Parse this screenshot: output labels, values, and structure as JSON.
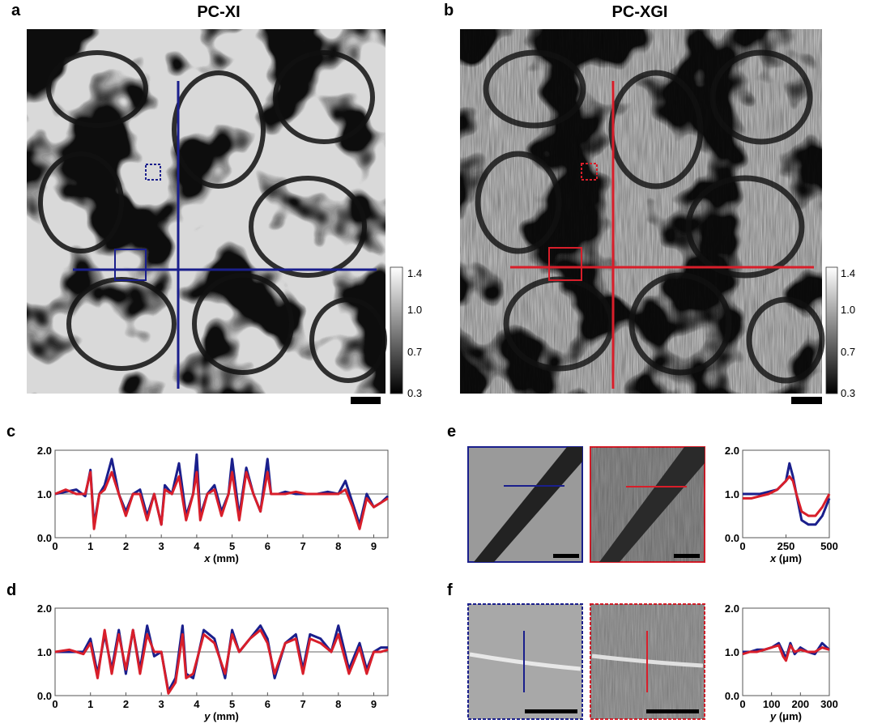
{
  "panels": {
    "a": {
      "label": "a",
      "title": "PC-XI"
    },
    "b": {
      "label": "b",
      "title": "PC-XGI"
    },
    "c": {
      "label": "c"
    },
    "d": {
      "label": "d"
    },
    "e": {
      "label": "e"
    },
    "f": {
      "label": "f"
    }
  },
  "colorbar": {
    "ticks": [
      "1.4",
      "1.0",
      "0.7",
      "0.3"
    ]
  },
  "colors": {
    "xi": "#1a1f8c",
    "xgi": "#d81e2a"
  },
  "chart_data": [
    {
      "panel": "c",
      "type": "line",
      "xlabel": "x (mm)",
      "xlabel_var": "x",
      "xlabel_unit": "(mm)",
      "xlim": [
        0,
        9.4
      ],
      "ylim": [
        0.0,
        2.0
      ],
      "xticks": [
        "0",
        "1",
        "2",
        "3",
        "4",
        "5",
        "6",
        "7",
        "8",
        "9"
      ],
      "yticks": [
        "0.0",
        "1.0",
        "2.0"
      ],
      "series": [
        {
          "color": "#1a1f8c",
          "x": [
            0,
            0.3,
            0.6,
            0.85,
            1.0,
            1.1,
            1.25,
            1.4,
            1.6,
            1.8,
            2.0,
            2.2,
            2.4,
            2.6,
            2.8,
            3.0,
            3.1,
            3.3,
            3.5,
            3.7,
            3.9,
            4.0,
            4.1,
            4.3,
            4.5,
            4.7,
            4.9,
            5.0,
            5.2,
            5.4,
            5.6,
            5.8,
            6.0,
            6.1,
            6.3,
            6.5,
            6.8,
            7.1,
            7.4,
            7.7,
            8.0,
            8.2,
            8.4,
            8.6,
            8.8,
            9.0,
            9.2,
            9.4
          ],
          "y": [
            1.0,
            1.05,
            1.1,
            0.95,
            1.55,
            0.3,
            1.0,
            1.2,
            1.8,
            1.0,
            0.6,
            1.0,
            1.1,
            0.5,
            1.0,
            0.3,
            1.2,
            1.0,
            1.7,
            0.5,
            1.0,
            1.9,
            0.5,
            1.0,
            1.2,
            0.6,
            1.0,
            1.8,
            0.5,
            1.6,
            1.0,
            0.6,
            1.8,
            1.0,
            1.0,
            1.05,
            1.0,
            1.0,
            1.0,
            1.05,
            1.0,
            1.3,
            0.8,
            0.3,
            1.0,
            0.7,
            0.8,
            0.95
          ]
        },
        {
          "color": "#d81e2a",
          "x": [
            0,
            0.3,
            0.6,
            0.85,
            1.0,
            1.1,
            1.25,
            1.4,
            1.6,
            1.8,
            2.0,
            2.2,
            2.4,
            2.6,
            2.8,
            3.0,
            3.1,
            3.3,
            3.5,
            3.7,
            3.9,
            4.0,
            4.1,
            4.3,
            4.5,
            4.7,
            4.9,
            5.0,
            5.2,
            5.4,
            5.6,
            5.8,
            6.0,
            6.1,
            6.3,
            6.5,
            6.8,
            7.1,
            7.4,
            7.7,
            8.0,
            8.2,
            8.4,
            8.6,
            8.8,
            9.0,
            9.2,
            9.4
          ],
          "y": [
            1.0,
            1.1,
            1.0,
            1.0,
            1.5,
            0.2,
            1.0,
            1.1,
            1.5,
            1.0,
            0.5,
            1.0,
            1.0,
            0.4,
            1.0,
            0.3,
            1.1,
            1.0,
            1.4,
            0.4,
            1.0,
            1.5,
            0.4,
            1.0,
            1.1,
            0.5,
            1.0,
            1.5,
            0.4,
            1.5,
            1.0,
            0.6,
            1.5,
            1.0,
            1.0,
            1.0,
            1.05,
            1.0,
            1.0,
            1.0,
            1.0,
            1.1,
            0.7,
            0.2,
            0.9,
            0.7,
            0.8,
            0.9
          ]
        }
      ]
    },
    {
      "panel": "d",
      "type": "line",
      "xlabel": "y (mm)",
      "xlabel_var": "y",
      "xlabel_unit": "(mm)",
      "xlim": [
        0,
        9.4
      ],
      "ylim": [
        0.0,
        2.0
      ],
      "xticks": [
        "0",
        "1",
        "2",
        "3",
        "4",
        "5",
        "6",
        "7",
        "8",
        "9"
      ],
      "yticks": [
        "0.0",
        "1.0",
        "2.0"
      ],
      "series": [
        {
          "color": "#1a1f8c",
          "x": [
            0,
            0.4,
            0.8,
            1.0,
            1.2,
            1.4,
            1.6,
            1.8,
            2.0,
            2.2,
            2.4,
            2.6,
            2.8,
            3.0,
            3.2,
            3.4,
            3.6,
            3.7,
            3.9,
            4.2,
            4.5,
            4.8,
            5.0,
            5.2,
            5.5,
            5.8,
            6.0,
            6.2,
            6.5,
            6.8,
            7.0,
            7.2,
            7.5,
            7.8,
            8.0,
            8.3,
            8.6,
            8.8,
            9.0,
            9.2,
            9.4
          ],
          "y": [
            1.0,
            1.0,
            1.0,
            1.3,
            0.5,
            1.4,
            0.6,
            1.5,
            0.5,
            1.5,
            0.6,
            1.6,
            0.9,
            1.0,
            0.1,
            0.4,
            1.6,
            0.5,
            0.4,
            1.5,
            1.3,
            0.4,
            1.5,
            1.0,
            1.3,
            1.6,
            1.3,
            0.4,
            1.2,
            1.4,
            0.6,
            1.4,
            1.3,
            1.0,
            1.6,
            0.6,
            1.2,
            0.6,
            1.0,
            1.1,
            1.1
          ]
        },
        {
          "color": "#d81e2a",
          "x": [
            0,
            0.4,
            0.8,
            1.0,
            1.2,
            1.4,
            1.6,
            1.8,
            2.0,
            2.2,
            2.4,
            2.6,
            2.8,
            3.0,
            3.2,
            3.4,
            3.6,
            3.7,
            3.9,
            4.2,
            4.5,
            4.8,
            5.0,
            5.2,
            5.5,
            5.8,
            6.0,
            6.2,
            6.5,
            6.8,
            7.0,
            7.2,
            7.5,
            7.8,
            8.0,
            8.3,
            8.6,
            8.8,
            9.0,
            9.2,
            9.4
          ],
          "y": [
            1.0,
            1.05,
            0.95,
            1.2,
            0.4,
            1.5,
            0.5,
            1.4,
            0.6,
            1.5,
            0.5,
            1.4,
            1.0,
            1.0,
            0.05,
            0.3,
            1.4,
            0.4,
            0.5,
            1.4,
            1.2,
            0.5,
            1.4,
            1.0,
            1.3,
            1.5,
            1.2,
            0.5,
            1.2,
            1.3,
            0.5,
            1.3,
            1.2,
            1.0,
            1.4,
            0.5,
            1.1,
            0.5,
            1.0,
            1.0,
            1.05
          ]
        }
      ]
    },
    {
      "panel": "e",
      "type": "line",
      "xlabel": "x (μm)",
      "xlabel_var": "x",
      "xlabel_unit": "(μm)",
      "xlim": [
        0,
        500
      ],
      "ylim": [
        0.0,
        2.0
      ],
      "xticks": [
        "0",
        "250",
        "500"
      ],
      "yticks": [
        "0.0",
        "1.0",
        "2.0"
      ],
      "series": [
        {
          "color": "#1a1f8c",
          "x": [
            0,
            50,
            100,
            150,
            200,
            250,
            270,
            290,
            310,
            340,
            380,
            420,
            460,
            500
          ],
          "y": [
            1.0,
            1.0,
            1.0,
            1.05,
            1.1,
            1.3,
            1.7,
            1.4,
            1.0,
            0.4,
            0.3,
            0.3,
            0.5,
            0.9
          ]
        },
        {
          "color": "#d81e2a",
          "x": [
            0,
            50,
            100,
            150,
            200,
            250,
            270,
            290,
            310,
            340,
            380,
            420,
            460,
            500
          ],
          "y": [
            0.9,
            0.9,
            0.95,
            1.0,
            1.1,
            1.3,
            1.4,
            1.3,
            1.0,
            0.6,
            0.5,
            0.5,
            0.7,
            1.0
          ]
        }
      ]
    },
    {
      "panel": "f",
      "type": "line",
      "xlabel": "y (μm)",
      "xlabel_var": "y",
      "xlabel_unit": "(μm)",
      "xlim": [
        0,
        300
      ],
      "ylim": [
        0.0,
        2.0
      ],
      "xticks": [
        "0",
        "100",
        "200",
        "300"
      ],
      "yticks": [
        "0.0",
        "1.0",
        "2.0"
      ],
      "series": [
        {
          "color": "#1a1f8c",
          "x": [
            0,
            25,
            50,
            75,
            100,
            125,
            140,
            150,
            165,
            180,
            200,
            225,
            250,
            275,
            300
          ],
          "y": [
            1.0,
            1.0,
            1.05,
            1.05,
            1.1,
            1.2,
            1.0,
            0.85,
            1.2,
            0.95,
            1.1,
            1.0,
            0.95,
            1.2,
            1.05
          ]
        },
        {
          "color": "#d81e2a",
          "x": [
            0,
            25,
            50,
            75,
            100,
            125,
            140,
            150,
            165,
            180,
            200,
            225,
            250,
            275,
            300
          ],
          "y": [
            0.95,
            1.0,
            1.0,
            1.05,
            1.1,
            1.15,
            0.9,
            0.8,
            1.15,
            1.0,
            1.05,
            1.0,
            1.0,
            1.1,
            1.05
          ]
        }
      ]
    }
  ]
}
